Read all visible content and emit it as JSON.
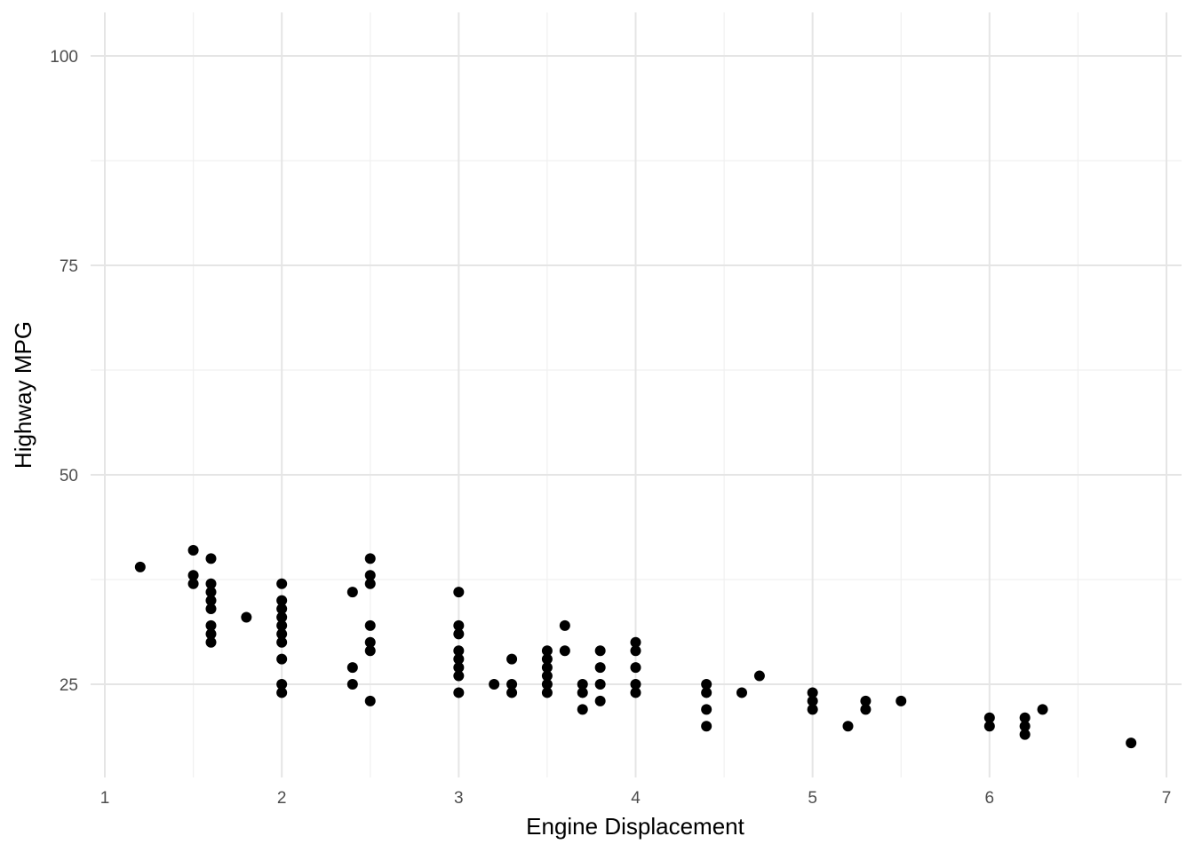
{
  "chart_data": {
    "type": "scatter",
    "xlabel": "Engine Displacement",
    "ylabel": "Highway MPG",
    "xlim": [
      1,
      7
    ],
    "ylim": [
      15,
      100
    ],
    "x_ticks": [
      "1",
      "2",
      "3",
      "4",
      "5",
      "6",
      "7"
    ],
    "y_ticks": [
      "25",
      "50",
      "75",
      "100"
    ],
    "grid": true,
    "point_color": "#000000",
    "series": [
      {
        "points": [
          [
            1.2,
            39
          ],
          [
            1.5,
            41
          ],
          [
            1.5,
            38
          ],
          [
            1.5,
            37
          ],
          [
            1.6,
            40
          ],
          [
            1.6,
            37
          ],
          [
            1.6,
            36
          ],
          [
            1.6,
            35
          ],
          [
            1.6,
            34
          ],
          [
            1.6,
            32
          ],
          [
            1.6,
            31
          ],
          [
            1.6,
            30
          ],
          [
            1.8,
            33
          ],
          [
            2.0,
            37
          ],
          [
            2.0,
            35
          ],
          [
            2.0,
            34
          ],
          [
            2.0,
            33
          ],
          [
            2.0,
            32
          ],
          [
            2.0,
            31
          ],
          [
            2.0,
            30
          ],
          [
            2.0,
            28
          ],
          [
            2.0,
            25
          ],
          [
            2.0,
            24
          ],
          [
            2.4,
            36
          ],
          [
            2.4,
            27
          ],
          [
            2.4,
            25
          ],
          [
            2.5,
            40
          ],
          [
            2.5,
            38
          ],
          [
            2.5,
            37
          ],
          [
            2.5,
            32
          ],
          [
            2.5,
            30
          ],
          [
            2.5,
            29
          ],
          [
            2.5,
            23
          ],
          [
            3.0,
            36
          ],
          [
            3.0,
            32
          ],
          [
            3.0,
            31
          ],
          [
            3.0,
            29
          ],
          [
            3.0,
            28
          ],
          [
            3.0,
            27
          ],
          [
            3.0,
            26
          ],
          [
            3.0,
            24
          ],
          [
            3.2,
            25
          ],
          [
            3.3,
            28
          ],
          [
            3.3,
            25
          ],
          [
            3.3,
            24
          ],
          [
            3.5,
            29
          ],
          [
            3.5,
            28
          ],
          [
            3.5,
            27
          ],
          [
            3.5,
            26
          ],
          [
            3.5,
            25
          ],
          [
            3.5,
            24
          ],
          [
            3.6,
            32
          ],
          [
            3.6,
            29
          ],
          [
            3.7,
            25
          ],
          [
            3.7,
            24
          ],
          [
            3.7,
            22
          ],
          [
            3.8,
            29
          ],
          [
            3.8,
            27
          ],
          [
            3.8,
            25
          ],
          [
            3.8,
            23
          ],
          [
            4.0,
            30
          ],
          [
            4.0,
            29
          ],
          [
            4.0,
            27
          ],
          [
            4.0,
            25
          ],
          [
            4.0,
            24
          ],
          [
            4.4,
            25
          ],
          [
            4.4,
            24
          ],
          [
            4.4,
            22
          ],
          [
            4.4,
            20
          ],
          [
            4.6,
            24
          ],
          [
            4.7,
            26
          ],
          [
            5.0,
            24
          ],
          [
            5.0,
            23
          ],
          [
            5.0,
            22
          ],
          [
            5.2,
            20
          ],
          [
            5.3,
            23
          ],
          [
            5.3,
            22
          ],
          [
            5.5,
            23
          ],
          [
            6.0,
            21
          ],
          [
            6.0,
            20
          ],
          [
            6.2,
            21
          ],
          [
            6.2,
            20
          ],
          [
            6.2,
            19
          ],
          [
            6.3,
            22
          ],
          [
            6.8,
            18
          ]
        ]
      }
    ]
  }
}
